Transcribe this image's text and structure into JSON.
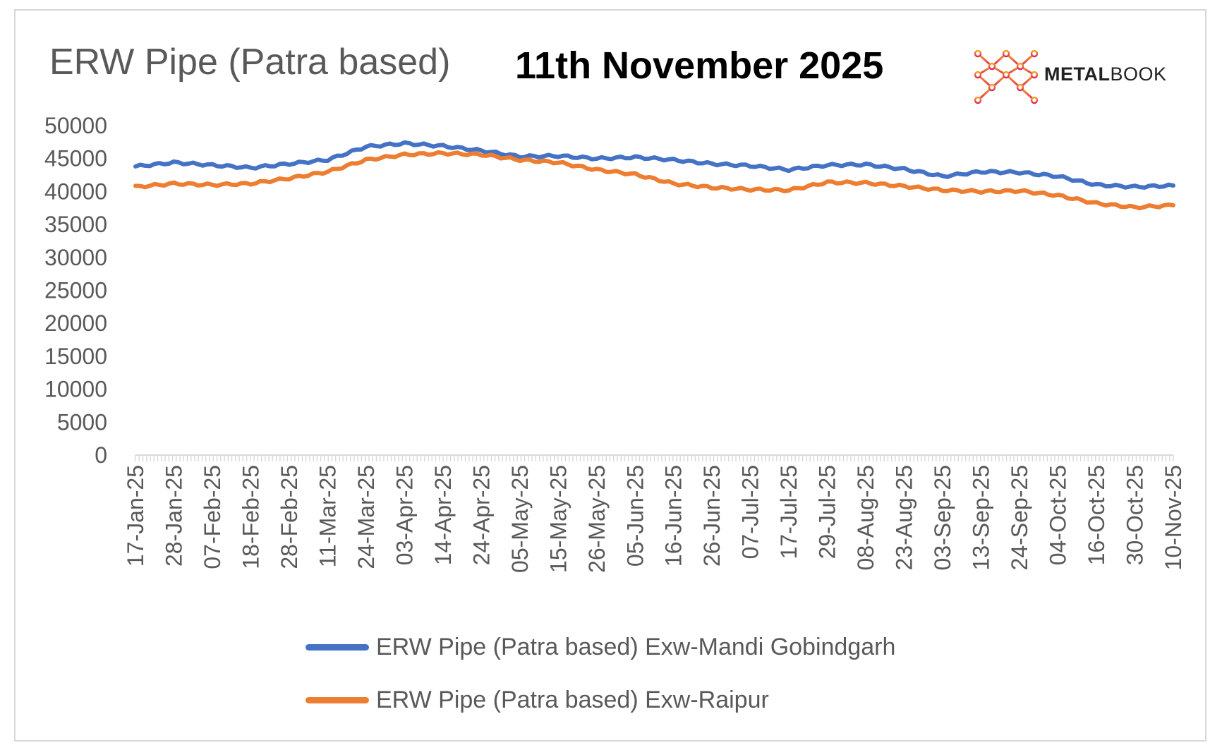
{
  "header": {
    "title": "ERW Pipe (Patra based)",
    "date": "11th November 2025",
    "logo_text_bold": "METAL",
    "logo_text_light": "BOOK"
  },
  "colors": {
    "series_1": "#4472C4",
    "series_2": "#ED7D31",
    "axis_text": "#595959",
    "axis_line": "#d9d9d9"
  },
  "chart_data": {
    "type": "line",
    "title": "ERW Pipe (Patra based)",
    "subtitle": "11th November 2025",
    "xlabel": "",
    "ylabel": "",
    "ylim": [
      0,
      50000
    ],
    "yticks": [
      0,
      5000,
      10000,
      15000,
      20000,
      25000,
      30000,
      35000,
      40000,
      45000,
      50000
    ],
    "grid": false,
    "legend_position": "bottom",
    "categories": [
      "17-Jan-25",
      "28-Jan-25",
      "07-Feb-25",
      "18-Feb-25",
      "28-Feb-25",
      "11-Mar-25",
      "24-Mar-25",
      "03-Apr-25",
      "14-Apr-25",
      "24-Apr-25",
      "05-May-25",
      "15-May-25",
      "26-May-25",
      "05-Jun-25",
      "16-Jun-25",
      "26-Jun-25",
      "07-Jul-25",
      "17-Jul-25",
      "29-Jul-25",
      "08-Aug-25",
      "23-Aug-25",
      "03-Sep-25",
      "13-Sep-25",
      "24-Sep-25",
      "04-Oct-25",
      "16-Oct-25",
      "30-Oct-25",
      "10-Nov-25"
    ],
    "series": [
      {
        "name": "ERW Pipe (Patra based) Exw-Mandi Gobindgarh",
        "values": [
          43800,
          44400,
          44000,
          43600,
          44200,
          44800,
          46800,
          47300,
          46900,
          46200,
          45300,
          45400,
          45000,
          45200,
          44800,
          44200,
          43900,
          43300,
          44000,
          44100,
          43400,
          42300,
          43000,
          42900,
          42300,
          41000,
          40700,
          40900
        ]
      },
      {
        "name": "ERW Pipe (Patra based) Exw-Raipur",
        "values": [
          40700,
          41200,
          41000,
          41200,
          42000,
          43000,
          44800,
          45600,
          45800,
          45600,
          44800,
          44400,
          43300,
          42600,
          41200,
          40600,
          40300,
          40200,
          41400,
          41300,
          40800,
          40200,
          40000,
          40100,
          39400,
          38200,
          37600,
          37900
        ]
      }
    ]
  }
}
